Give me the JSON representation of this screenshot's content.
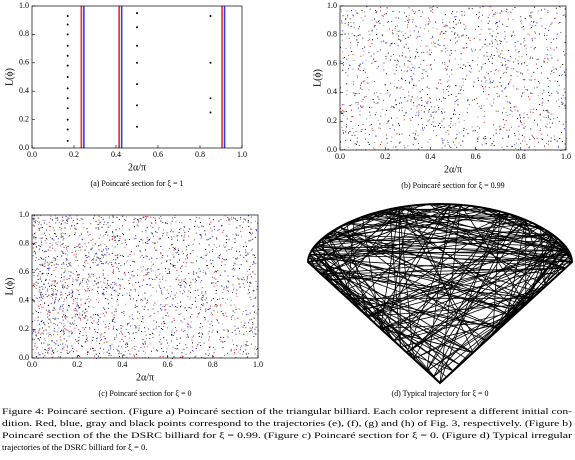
{
  "figure": {
    "panels": [
      {
        "caption": "(a) Poincaré section for ξ = 1",
        "xlabel": "2α/π",
        "ylabel": "L(ϕ)",
        "xlim": [
          0,
          1
        ],
        "ylim": [
          0,
          1
        ],
        "xticks": [
          {
            "value": 0,
            "label": "0.0"
          },
          0.2,
          0.4,
          0.6,
          0.8,
          {
            "value": 1,
            "label": "1.0"
          }
        ],
        "yticks": [
          {
            "value": 0,
            "label": "0.0"
          },
          0.2,
          0.4,
          0.6,
          0.8,
          {
            "value": 1,
            "label": "1.0"
          }
        ],
        "lines": [
          {
            "x": 0.235,
            "color": "#e03030"
          },
          {
            "x": 0.247,
            "color": "#3040e0"
          },
          {
            "x": 0.415,
            "color": "#e03030"
          },
          {
            "x": 0.427,
            "color": "#3040e0"
          },
          {
            "x": 0.905,
            "color": "#e03030"
          },
          {
            "x": 0.917,
            "color": "#3040e0"
          }
        ],
        "dots": [
          {
            "x": 0.17,
            "ys": [
              0.93,
              0.87,
              0.8,
              0.72,
              0.65,
              0.58,
              0.5,
              0.42,
              0.35,
              0.28,
              0.2,
              0.13,
              0.05
            ]
          },
          {
            "x": 0.5,
            "ys": [
              0.95,
              0.85,
              0.72,
              0.6,
              0.45,
              0.3,
              0.15
            ]
          },
          {
            "x": 0.85,
            "ys": [
              0.93,
              0.6,
              0.35,
              0.25
            ]
          }
        ]
      },
      {
        "caption": "(b) Poincaré section for ξ = 0.99",
        "xlabel": "2α/π",
        "ylabel": "L(ϕ)",
        "xlim": [
          0,
          1
        ],
        "ylim": [
          0,
          1
        ],
        "xticks": [
          {
            "value": 0,
            "label": "0.0"
          },
          0.2,
          0.4,
          0.6,
          0.8,
          {
            "value": 1,
            "label": "1.0"
          }
        ],
        "yticks": [
          {
            "value": 0,
            "label": "0.0"
          },
          0.2,
          0.4,
          0.6,
          0.8,
          {
            "value": 1,
            "label": "1.0"
          }
        ]
      },
      {
        "caption": "(c) Poincaré section for ξ = 0",
        "xlabel": "2α/π",
        "ylabel": "L(ϕ)",
        "xlim": [
          0,
          1
        ],
        "ylim": [
          0,
          1
        ],
        "xticks": [
          {
            "value": 0,
            "label": "0.0"
          },
          0.2,
          0.4,
          0.6,
          0.8,
          {
            "value": 1,
            "label": "1.0"
          }
        ],
        "yticks": [
          {
            "value": 0,
            "label": "0.0"
          },
          0.2,
          0.4,
          0.6,
          0.8,
          {
            "value": 1,
            "label": "1.0"
          }
        ]
      },
      {
        "caption": "(d) Typical trajectory for ξ = 0"
      }
    ],
    "caption_lines": [
      "Figure 4:  Poincaré section.  (Figure a) Poincaré section of the triangular billiard.  Each color represent a different initial con-",
      "dition.  Red, blue, gray and black points correspond to the trajectories (e), (f), (g) and (h) of Fig. 3, respectively.  (Figure b)",
      "Poincaré section of the the DSRC billiard for ξ = 0.99.  (Figure c) Poincaré section for ξ = 0.  (Figure d) Typical irregular",
      "trajectories of the DSRC billiard for ξ = 0."
    ]
  }
}
